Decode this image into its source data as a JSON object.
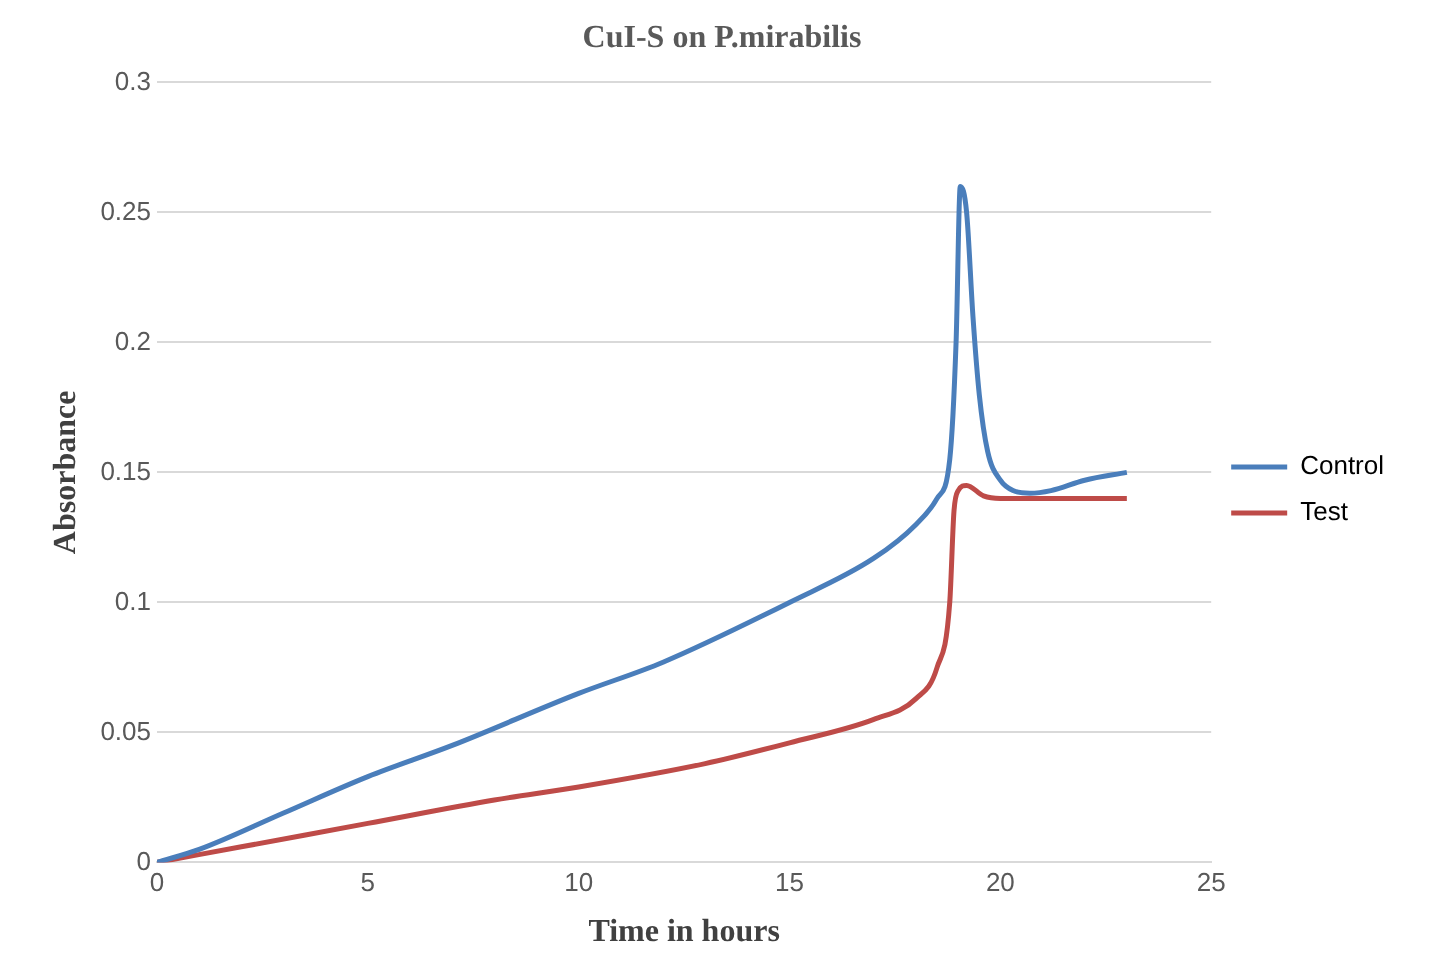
{
  "chart_data": {
    "type": "line",
    "title": "CuI-S on P.mirabilis",
    "xlabel": "Time in hours",
    "ylabel": "Absorbance",
    "xlim": [
      0,
      25
    ],
    "xticks": [
      0,
      5,
      10,
      15,
      20,
      25
    ],
    "ylim": [
      0,
      0.3
    ],
    "yticks": [
      0,
      0.05,
      0.1,
      0.15,
      0.2,
      0.25,
      0.3
    ],
    "grid": "y",
    "legend": "right",
    "marker": "none",
    "line_style": "solid",
    "series": [
      {
        "name": "Control",
        "color": "#4a7ebb",
        "x": [
          0,
          1,
          3,
          5,
          7,
          10,
          12,
          15,
          17,
          18,
          18.5,
          18.8,
          18.95,
          19.05,
          19.2,
          19.35,
          19.5,
          19.7,
          20,
          20.3,
          20.7,
          21.2,
          22,
          23
        ],
        "values": [
          0,
          0.005,
          0.019,
          0.033,
          0.045,
          0.065,
          0.077,
          0.1,
          0.117,
          0.13,
          0.14,
          0.155,
          0.2,
          0.26,
          0.25,
          0.21,
          0.18,
          0.158,
          0.147,
          0.143,
          0.142,
          0.143,
          0.147,
          0.15
        ]
      },
      {
        "name": "Test",
        "color": "#be4b48",
        "x": [
          0,
          2,
          5,
          8,
          10,
          13,
          15,
          17,
          18,
          18.5,
          18.8,
          18.9,
          19,
          19.2,
          19.6,
          20,
          21,
          23
        ],
        "values": [
          0,
          0.006,
          0.015,
          0.024,
          0.029,
          0.038,
          0.046,
          0.055,
          0.063,
          0.075,
          0.1,
          0.135,
          0.143,
          0.145,
          0.141,
          0.14,
          0.14,
          0.14
        ]
      }
    ]
  }
}
